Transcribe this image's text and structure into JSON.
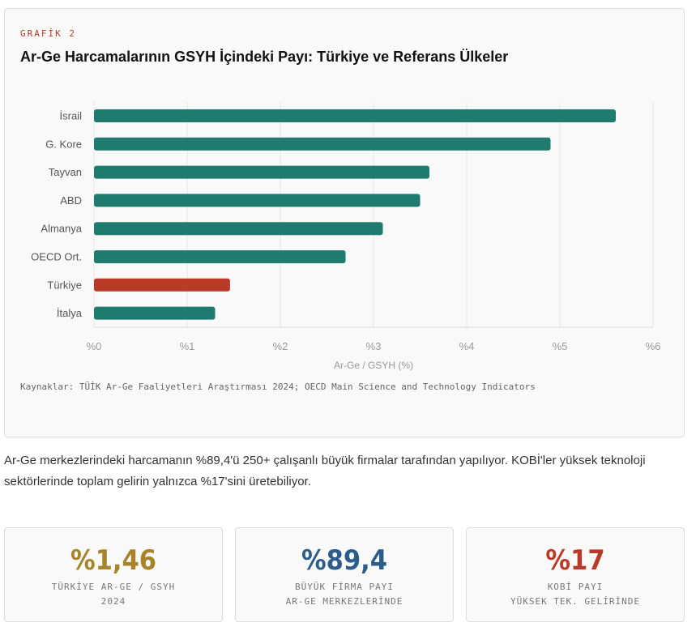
{
  "card": {
    "kicker": "GRAFİK 2",
    "title": "Ar-Ge Harcamalarının GSYH İçindeki Payı: Türkiye ve Referans Ülkeler",
    "source": "Kaynaklar: TÜİK Ar-Ge Faaliyetleri Araştırması 2024; OECD Main Science and Technology Indicators"
  },
  "chart_data": {
    "type": "bar",
    "orientation": "horizontal",
    "categories": [
      "İsrail",
      "G. Kore",
      "Tayvan",
      "ABD",
      "Almanya",
      "OECD Ort.",
      "Türkiye",
      "İtalya"
    ],
    "values": [
      5.6,
      4.9,
      3.6,
      3.5,
      3.1,
      2.7,
      1.46,
      1.3
    ],
    "highlight": "Türkiye",
    "colors": {
      "default": "#1e7b6e",
      "highlight": "#b93a27"
    },
    "xlabel": "Ar-Ge / GSYH (%)",
    "xlim": [
      0,
      6
    ],
    "xticks": [
      "%0",
      "%1",
      "%2",
      "%3",
      "%4",
      "%5",
      "%6"
    ],
    "grid": true
  },
  "paragraph": "Ar-Ge merkezlerindeki harcamanın %89,4'ü 250+ çalışanlı büyük firmalar tarafından yapılıyor. KOBİ'ler yüksek teknoloji sektörlerinde toplam gelirin yalnızca %17'sini üretebiliyor.",
  "stats": [
    {
      "value": "%1,46",
      "line1": "TÜRKİYE AR-GE / GSYH",
      "line2": "2024",
      "color": "#a8832a"
    },
    {
      "value": "%89,4",
      "line1": "BÜYÜK FİRMA PAYI",
      "line2": "AR-GE MERKEZLERİNDE",
      "color": "#2c5d8a"
    },
    {
      "value": "%17",
      "line1": "KOBİ PAYI",
      "line2": "YÜKSEK TEK. GELİRİNDE",
      "color": "#b93a27"
    }
  ]
}
